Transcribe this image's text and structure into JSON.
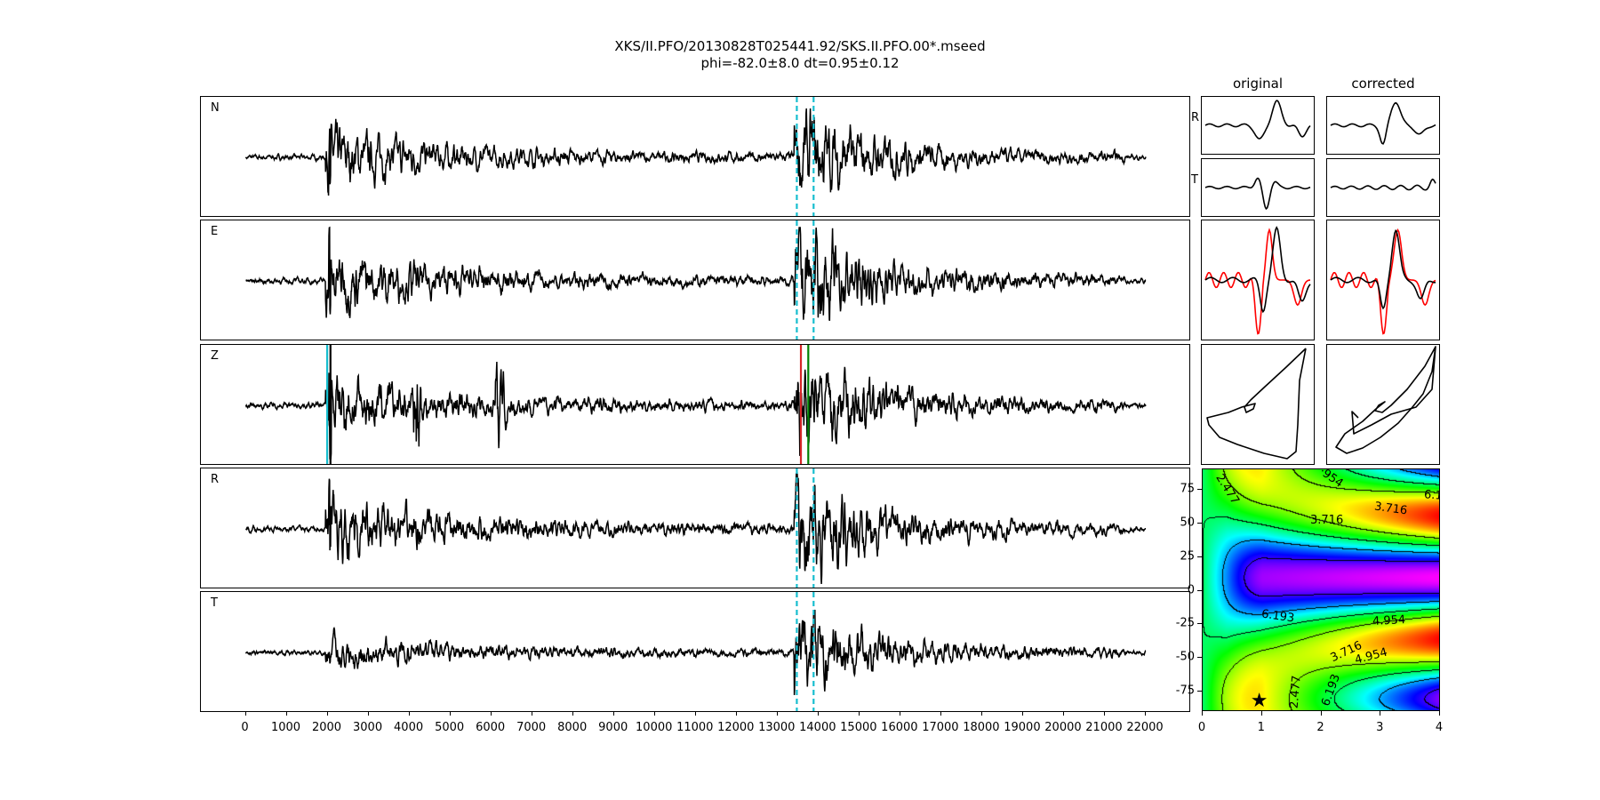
{
  "title": {
    "line1": "XKS/II.PFO/20130828T025441.92/SKS.II.PFO.00*.mseed",
    "line2": "phi=-82.0±8.0 dt=0.95±0.12"
  },
  "chart_data": [
    {
      "type": "line",
      "description_kind": "seismogram traces",
      "panels": [
        {
          "label": "N",
          "markers": "window"
        },
        {
          "label": "E",
          "markers": "window"
        },
        {
          "label": "Z",
          "markers": "picks"
        },
        {
          "label": "R",
          "markers": "window"
        },
        {
          "label": "T",
          "markers": "window"
        }
      ],
      "xlim": [
        -1000,
        23000
      ],
      "x_ticks": [
        "0",
        "1000",
        "2000",
        "3000",
        "4000",
        "5000",
        "6000",
        "7000",
        "8000",
        "9000",
        "10000",
        "11000",
        "12000",
        "13000",
        "14000",
        "15000",
        "16000",
        "17000",
        "18000",
        "19000",
        "20000",
        "21000",
        "22000"
      ],
      "trace_range": [
        0,
        22000
      ],
      "window": {
        "start": 13470,
        "end": 13880,
        "color": "#17becf"
      },
      "picks": [
        {
          "x": 1990,
          "color": "#17becf"
        },
        {
          "x": 2070,
          "color": "#000000"
        },
        {
          "x": 13570,
          "color": "#d62728"
        },
        {
          "x": 13750,
          "color": "#008000"
        }
      ]
    },
    {
      "type": "line",
      "description_kind": "window comparison",
      "columns": [
        "original",
        "corrected"
      ],
      "rows": [
        "R",
        "T"
      ],
      "overlay_colors": {
        "first": "#ff0000",
        "second": "#000000"
      }
    },
    {
      "type": "heatmap",
      "xlim": [
        0,
        4
      ],
      "ylim": [
        -90,
        90
      ],
      "x_ticks": [
        "0",
        "1",
        "2",
        "3",
        "4"
      ],
      "y_ticks": [
        "75",
        "50",
        "25",
        "0",
        "-25",
        "-50",
        "-75"
      ],
      "contour_levels": [
        2.477,
        3.716,
        4.954,
        6.193
      ],
      "contour_labels": [
        "2.477",
        "·954",
        "6.1",
        "3.716",
        "3.716",
        "6.193",
        "4.954",
        "3.716",
        "4.954",
        "2.477",
        "6.193"
      ],
      "best": {
        "dt": 0.95,
        "phi": -82.0
      }
    }
  ]
}
